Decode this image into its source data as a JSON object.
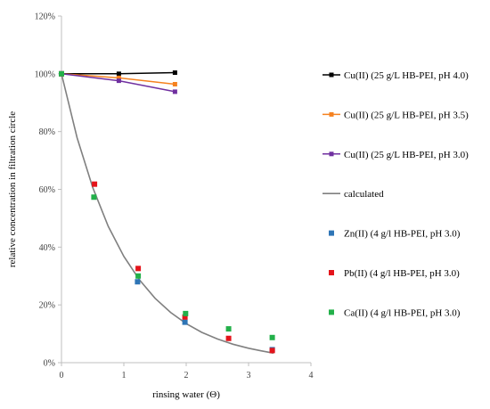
{
  "chart_data": {
    "type": "scatter",
    "title": "",
    "xlabel": "rinsing water (Θ)",
    "ylabel": "relative concentration in filtration circle",
    "xlim": [
      0,
      4
    ],
    "ylim": [
      0,
      120
    ],
    "x_ticks": [
      "0",
      "1",
      "2",
      "3",
      "4"
    ],
    "y_ticks": [
      "0%",
      "20%",
      "40%",
      "60%",
      "80%",
      "100%",
      "120%"
    ],
    "grid": false,
    "legend_position": "right",
    "series": [
      {
        "name": "Cu(II) (25 g/L HB-PEI, pH 4.0)",
        "kind": "line-marker",
        "color": "#000000",
        "points": [
          [
            0,
            100
          ],
          [
            0.92,
            100.0
          ],
          [
            1.82,
            100.4
          ]
        ]
      },
      {
        "name": "Cu(II) (25 g/L HB-PEI, pH 3.5)",
        "kind": "line-marker",
        "color": "#F58220",
        "points": [
          [
            0,
            100
          ],
          [
            0.92,
            98.6
          ],
          [
            1.82,
            96.4
          ]
        ]
      },
      {
        "name": "Cu(II) (25 g/L HB-PEI, pH 3.0)",
        "kind": "line-marker",
        "color": "#7030A0",
        "points": [
          [
            0,
            100
          ],
          [
            0.92,
            97.6
          ],
          [
            1.82,
            93.8
          ]
        ]
      },
      {
        "name": "calculated",
        "kind": "line",
        "color": "#808080",
        "points": [
          [
            0,
            100
          ],
          [
            0.25,
            77.9
          ],
          [
            0.5,
            60.7
          ],
          [
            0.75,
            47.2
          ],
          [
            1.0,
            36.8
          ],
          [
            1.25,
            28.7
          ],
          [
            1.5,
            22.3
          ],
          [
            1.75,
            17.4
          ],
          [
            2.0,
            13.5
          ],
          [
            2.25,
            10.5
          ],
          [
            2.5,
            8.2
          ],
          [
            2.75,
            6.4
          ],
          [
            3.0,
            5.0
          ],
          [
            3.2,
            4.1
          ],
          [
            3.4,
            3.3
          ]
        ]
      },
      {
        "name": "Zn(II) (4 g/l HB-PEI, pH 3.0)",
        "kind": "marker",
        "color": "#2E75B6",
        "points": [
          [
            0,
            100
          ],
          [
            1.22,
            28.0
          ],
          [
            1.98,
            14.0
          ],
          [
            3.38,
            4.5
          ]
        ]
      },
      {
        "name": "Pb(II) (4 g/l HB-PEI, pH 3.0)",
        "kind": "marker",
        "color": "#E4141B",
        "points": [
          [
            0,
            100
          ],
          [
            0.53,
            61.8
          ],
          [
            1.23,
            32.6
          ],
          [
            1.98,
            15.8
          ],
          [
            2.68,
            8.4
          ],
          [
            3.38,
            4.2
          ]
        ]
      },
      {
        "name": "Ca(II) (4 g/l HB-PEI, pH 3.0)",
        "kind": "marker",
        "color": "#23B04A",
        "points": [
          [
            0,
            100
          ],
          [
            0.52,
            57.3
          ],
          [
            1.23,
            30.0
          ],
          [
            1.99,
            17.0
          ],
          [
            2.68,
            11.7
          ],
          [
            3.38,
            8.7
          ]
        ]
      }
    ]
  }
}
